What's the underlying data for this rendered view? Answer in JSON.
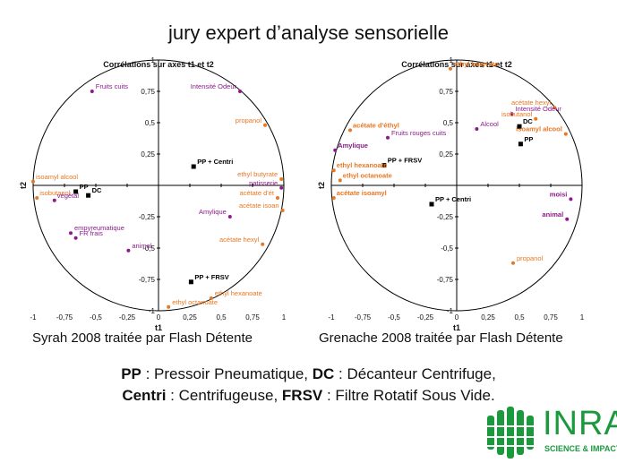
{
  "slide_title": "jury expert d’analyse sensorielle",
  "captions": {
    "left": "Syrah 2008 traitée par Flash Détente",
    "right": "Grenache 2008 traitée par Flash Détente"
  },
  "legend": {
    "line1": [
      {
        "abbr": "PP",
        "text": " : Pressoir Pneumatique, "
      },
      {
        "abbr": "DC",
        "text": " : Décanteur Centrifuge,"
      }
    ],
    "line2": [
      {
        "abbr": "Centri",
        "text": " : Centrifugeuse, "
      },
      {
        "abbr": "FRSV",
        "text": " : Filtre Rotatif Sous Vide."
      }
    ]
  },
  "logo": {
    "text": "INRA",
    "subtitle": "SCIENCE & IMPACT"
  },
  "colors": {
    "orange": "#e87722",
    "purple": "#8b1a8b",
    "black": "#000000"
  },
  "chart_data": [
    {
      "type": "scatter",
      "title": "Corrélations sur axes t1 et t2",
      "xlabel": "t1",
      "ylabel": "t2",
      "xlim": [
        -1,
        1
      ],
      "ylim": [
        -1,
        1
      ],
      "xticks": [
        "-1",
        "-0,75",
        "-0,5",
        "-0,25",
        "0",
        "0,25",
        "0,5",
        "0,75",
        "1"
      ],
      "yticks": [
        "1",
        "0,75",
        "0,5",
        "0,25",
        "0",
        "-0,25",
        "-0,5",
        "-0,75",
        "-1"
      ],
      "grid": false,
      "points": [
        {
          "label": "Fruits cuits",
          "x": -0.53,
          "y": 0.75,
          "color": "purple"
        },
        {
          "label": "Intensité Odeur",
          "x": 0.65,
          "y": 0.75,
          "color": "purple"
        },
        {
          "label": "propanol",
          "x": 0.85,
          "y": 0.48,
          "color": "orange"
        },
        {
          "label": "PP + Centri",
          "x": 0.28,
          "y": 0.15,
          "color": "black"
        },
        {
          "label": "ethyl butyrate",
          "x": 0.98,
          "y": 0.05,
          "color": "orange"
        },
        {
          "label": "patisserie",
          "x": 0.98,
          "y": -0.02,
          "color": "purple"
        },
        {
          "label": "acétate d'ét",
          "x": 0.95,
          "y": -0.1,
          "color": "orange"
        },
        {
          "label": "acétate isoan",
          "x": 0.99,
          "y": -0.2,
          "color": "orange"
        },
        {
          "label": "Amylique",
          "x": 0.57,
          "y": -0.25,
          "color": "purple"
        },
        {
          "label": "acétate hexyl",
          "x": 0.83,
          "y": -0.47,
          "color": "orange"
        },
        {
          "label": "PP + FRSV",
          "x": 0.26,
          "y": -0.77,
          "color": "black"
        },
        {
          "label": "ethyl hexanoate",
          "x": 0.42,
          "y": -0.9,
          "color": "orange"
        },
        {
          "label": "ethyl octanoate",
          "x": 0.08,
          "y": -0.97,
          "color": "orange"
        },
        {
          "label": "isoamyl alcool",
          "x": -1.0,
          "y": 0.03,
          "color": "orange"
        },
        {
          "label": "isobutanol",
          "x": -0.97,
          "y": -0.1,
          "color": "orange"
        },
        {
          "label": "végétal",
          "x": -0.83,
          "y": -0.12,
          "color": "purple"
        },
        {
          "label": "PP",
          "x": -0.66,
          "y": -0.05,
          "color": "black"
        },
        {
          "label": "DC",
          "x": -0.56,
          "y": -0.08,
          "color": "black"
        },
        {
          "label": "empyreumatique",
          "x": -0.7,
          "y": -0.38,
          "color": "purple"
        },
        {
          "label": "FR frais",
          "x": -0.66,
          "y": -0.42,
          "color": "purple"
        },
        {
          "label": "animal",
          "x": -0.24,
          "y": -0.52,
          "color": "purple"
        }
      ]
    },
    {
      "type": "scatter",
      "title": "Corrélations sur axes t1 et t2",
      "xlabel": "t1",
      "ylabel": "t2",
      "xlim": [
        -1,
        1
      ],
      "ylim": [
        -1,
        1
      ],
      "xticks": [
        "-1",
        "-0,75",
        "-0,5",
        "-0,25",
        "0",
        "0,25",
        "0,5",
        "0,75",
        "1"
      ],
      "yticks": [
        "1",
        "0,75",
        "0,5",
        "0,25",
        "0",
        "-0,25",
        "-0,5",
        "-0,75",
        "-1"
      ],
      "grid": false,
      "points": [
        {
          "label": "ethyl butyrate",
          "x": -0.05,
          "y": 0.93,
          "color": "orange"
        },
        {
          "label": "acétate hexyl",
          "x": 0.78,
          "y": 0.62,
          "color": "orange"
        },
        {
          "label": "Intensité Odeur",
          "x": 0.44,
          "y": 0.57,
          "color": "purple"
        },
        {
          "label": "isobutanol",
          "x": 0.63,
          "y": 0.53,
          "color": "orange"
        },
        {
          "label": "Alcool",
          "x": 0.16,
          "y": 0.45,
          "color": "purple"
        },
        {
          "label": "isoamyl alcool",
          "x": 0.87,
          "y": 0.41,
          "color": "orange"
        },
        {
          "label": "DC",
          "x": 0.5,
          "y": 0.47,
          "color": "black"
        },
        {
          "label": "PP",
          "x": 0.51,
          "y": 0.33,
          "color": "black"
        },
        {
          "label": "acétate d'éthyl",
          "x": -0.85,
          "y": 0.44,
          "color": "orange"
        },
        {
          "label": "Fruits rouges cuits",
          "x": -0.55,
          "y": 0.38,
          "color": "purple"
        },
        {
          "label": "Amylique",
          "x": -0.97,
          "y": 0.28,
          "color": "purple"
        },
        {
          "label": "PP + FRSV",
          "x": -0.58,
          "y": 0.16,
          "color": "black"
        },
        {
          "label": "ethyl hexanoate",
          "x": -0.98,
          "y": 0.12,
          "color": "orange"
        },
        {
          "label": "ethyl octanoate",
          "x": -0.93,
          "y": 0.04,
          "color": "orange"
        },
        {
          "label": "acétate isoamyl",
          "x": -0.98,
          "y": -0.1,
          "color": "orange"
        },
        {
          "label": "PP + Centri",
          "x": -0.2,
          "y": -0.15,
          "color": "black"
        },
        {
          "label": "moisi",
          "x": 0.91,
          "y": -0.11,
          "color": "purple"
        },
        {
          "label": "animal",
          "x": 0.88,
          "y": -0.27,
          "color": "purple"
        },
        {
          "label": "propanol",
          "x": 0.45,
          "y": -0.62,
          "color": "orange"
        }
      ]
    }
  ]
}
